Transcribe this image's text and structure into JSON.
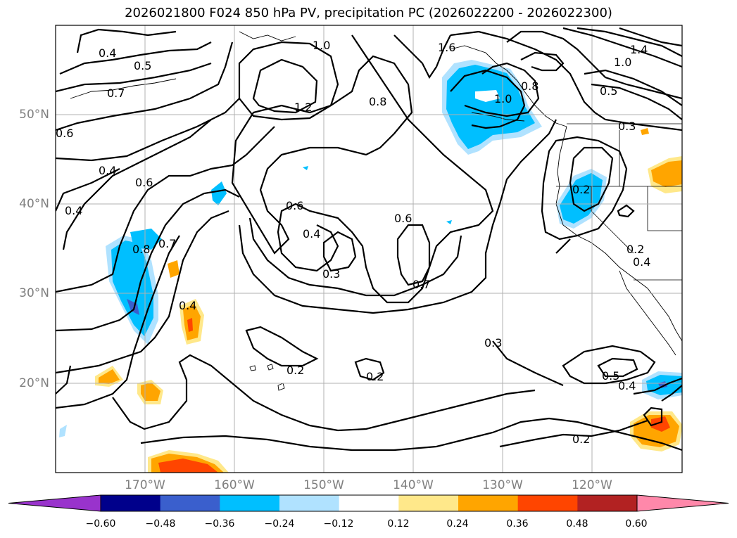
{
  "title": "2026021800 F024 850 hPa PV, precipitation PC (2026022200 - 2026022300)",
  "map": {
    "region": "North Pacific / western North America",
    "lon_range": [
      "180°",
      "110°W"
    ],
    "lat_range": [
      "10°N",
      "60°N"
    ],
    "latitude_labels": [
      "50°N",
      "40°N",
      "30°N",
      "20°N"
    ],
    "longitude_labels": [
      "170°W",
      "160°W",
      "150°W",
      "140°W",
      "130°W",
      "120°W"
    ],
    "grid": true,
    "contour_variable": "850 hPa PV",
    "contour_labels": [
      "0.4",
      "0.5",
      "0.7",
      "0.6",
      "0.4",
      "0.6",
      "0.4",
      "0.8",
      "0.7",
      "1.0",
      "1.2",
      "0.8",
      "0.6",
      "0.4",
      "0.3",
      "0.6",
      "0.7",
      "1.6",
      "1.0",
      "0.8",
      "0.5",
      "1.4",
      "1.0",
      "0.2",
      "0.3",
      "0.2",
      "0.4",
      "0.3",
      "0.2",
      "0.2",
      "0.5",
      "0.4",
      "0.2",
      "0.4"
    ],
    "shaded_variable": "precipitation PC"
  },
  "colorbar": {
    "ticks": [
      "−0.60",
      "−0.48",
      "−0.36",
      "−0.24",
      "−0.12",
      "0.12",
      "0.24",
      "0.36",
      "0.48",
      "0.60"
    ],
    "colors": [
      "#9933cc",
      "#00008b",
      "#3a5fcd",
      "#00bfff",
      "#b0e2ff",
      "#ffffff",
      "#ffe88a",
      "#ffa500",
      "#ff4500",
      "#b22222",
      "#ff88aa"
    ],
    "extend": "both"
  }
}
